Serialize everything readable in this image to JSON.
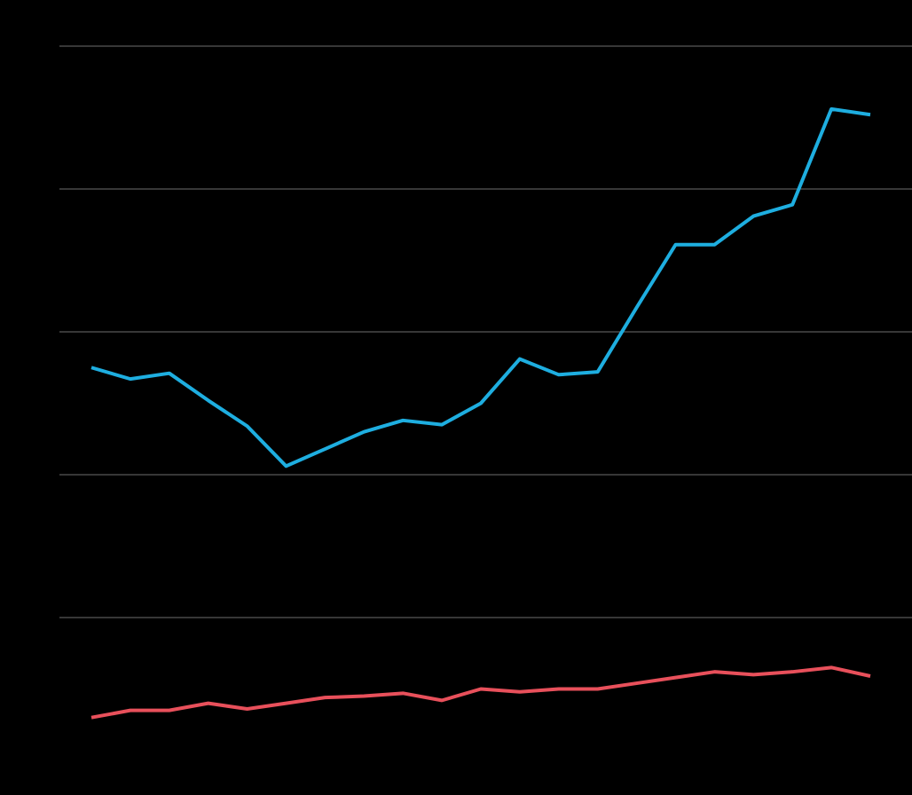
{
  "chart_data": {
    "type": "line",
    "categories": [
      null,
      null,
      null,
      null,
      null,
      null,
      null,
      null,
      null,
      null,
      null,
      null,
      null,
      null,
      null,
      null,
      null,
      null,
      null,
      null,
      null
    ],
    "series": [
      {
        "color": "#1eaee0",
        "values": [
          2.75,
          2.67,
          2.71,
          2.52,
          2.34,
          2.06,
          2.18,
          2.3,
          2.38,
          2.35,
          2.5,
          2.81,
          2.7,
          2.72,
          3.17,
          3.61,
          3.61,
          3.81,
          3.89,
          4.56,
          4.52
        ]
      },
      {
        "color": "#e8505b",
        "values": [
          0.3,
          0.35,
          0.35,
          0.4,
          0.36,
          0.4,
          0.44,
          0.45,
          0.47,
          0.42,
          0.5,
          0.48,
          0.5,
          0.5,
          0.54,
          0.58,
          0.62,
          0.6,
          0.62,
          0.65,
          0.59
        ]
      }
    ],
    "ylim": [
      0,
      5
    ],
    "yticks": [
      1,
      2,
      3,
      4,
      5
    ],
    "grid": true
  }
}
